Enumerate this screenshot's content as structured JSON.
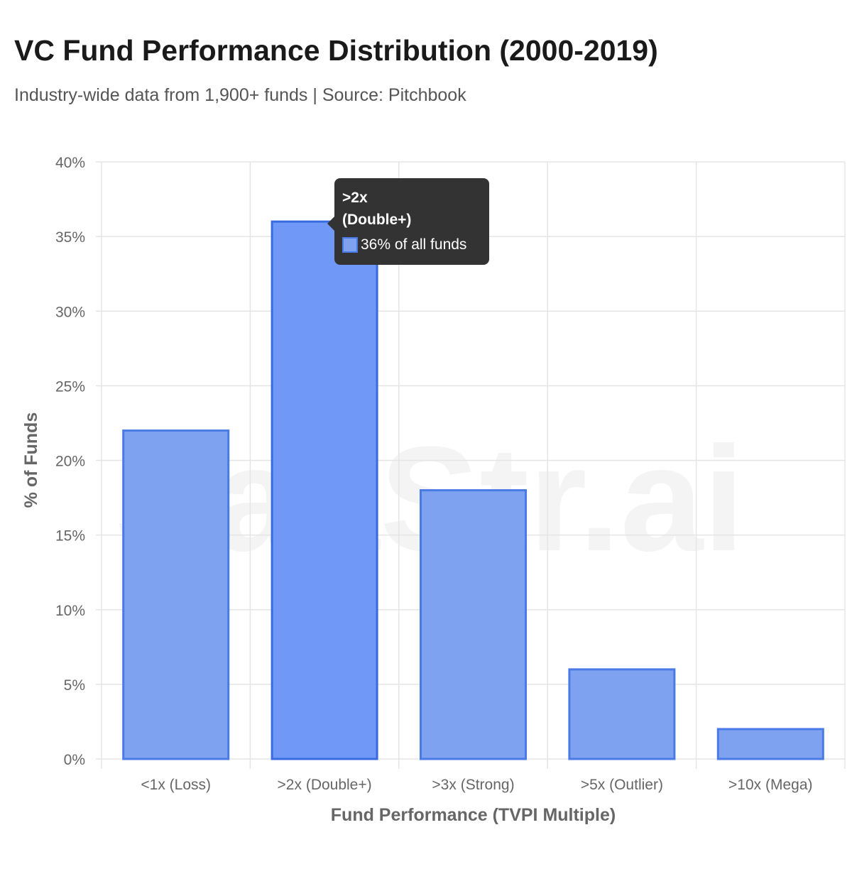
{
  "title": "VC Fund Performance Distribution (2000-2019)",
  "subtitle": "Industry-wide data from 1,900+ funds | Source: Pitchbook",
  "watermark": "SaaStr.ai",
  "colors": {
    "bar_fill": "#7fa2f0",
    "bar_border": "#4a7ae6",
    "bar_active_fill": "#6f98f7",
    "bar_active_border": "#3a6ae0",
    "grid": "#e5e5e5",
    "tooltip_bg": "#333333"
  },
  "tooltip": {
    "title_line1": ">2x",
    "title_line2": "(Double+)",
    "value": "36% of all funds"
  },
  "chart_data": {
    "type": "bar",
    "title": "VC Fund Performance Distribution (2000-2019)",
    "xlabel": "Fund Performance (TVPI Multiple)",
    "ylabel": "% of Funds",
    "categories": [
      "<1x (Loss)",
      ">2x (Double+)",
      ">3x (Strong)",
      ">5x (Outlier)",
      ">10x (Mega)"
    ],
    "values": [
      22,
      36,
      18,
      6,
      2
    ],
    "ylim": [
      0,
      40
    ],
    "yticks": [
      "0%",
      "5%",
      "10%",
      "15%",
      "20%",
      "25%",
      "30%",
      "35%",
      "40%"
    ],
    "grid": true,
    "highlighted": ">2x (Double+)"
  }
}
